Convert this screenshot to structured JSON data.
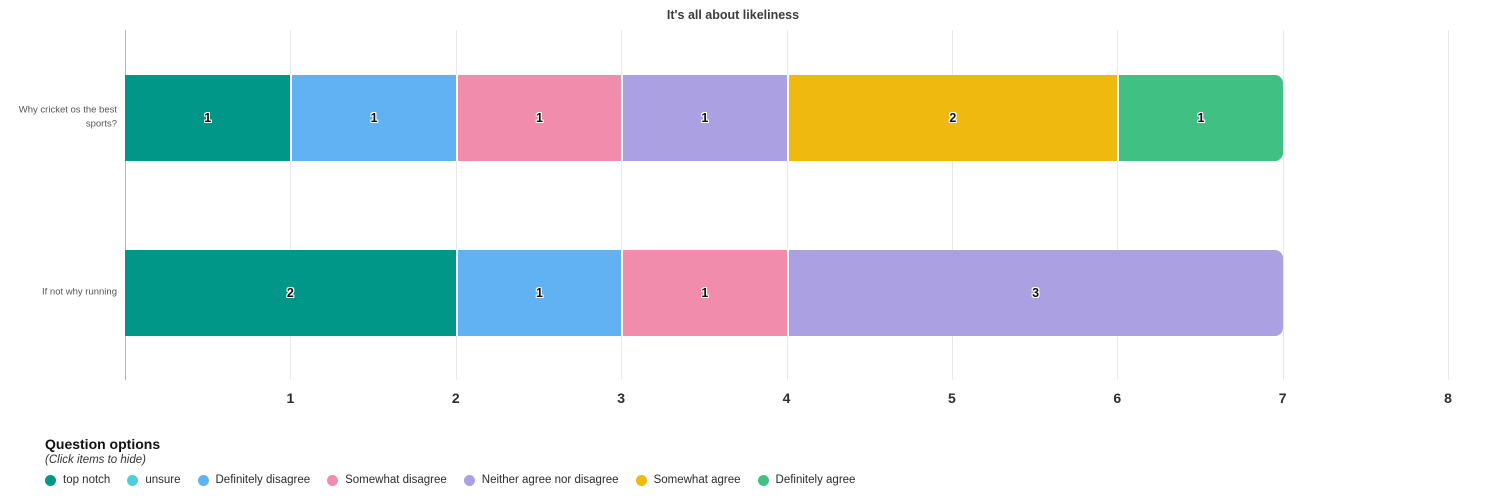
{
  "chart_data": {
    "type": "bar",
    "orientation": "horizontal",
    "stacked": true,
    "title": "It's all about likeliness",
    "categories": [
      "Why cricket os the best sports?",
      "If not why running"
    ],
    "series": [
      {
        "name": "top notch",
        "color": "#009789",
        "values": [
          1,
          2
        ]
      },
      {
        "name": "unsure",
        "color": "#4FCDD8",
        "values": [
          0,
          0
        ]
      },
      {
        "name": "Definitely disagree",
        "color": "#61B2F3",
        "values": [
          1,
          1
        ]
      },
      {
        "name": "Somewhat disagree",
        "color": "#F18CAC",
        "values": [
          1,
          1
        ]
      },
      {
        "name": "Neither agree nor disagree",
        "color": "#ABA0E2",
        "values": [
          1,
          3
        ]
      },
      {
        "name": "Somewhat agree",
        "color": "#F0B90F",
        "values": [
          2,
          0
        ]
      },
      {
        "name": "Definitely agree",
        "color": "#40C183",
        "values": [
          1,
          0
        ]
      }
    ],
    "xlim": [
      0,
      8
    ],
    "xticks": [
      "1",
      "2",
      "3",
      "4",
      "5",
      "6",
      "7",
      "8"
    ],
    "grid": true,
    "gridline_color": "#e9e9e9",
    "axis_line_color": "#b3b3b3",
    "legend_position": "bottom-left"
  },
  "legend": {
    "heading": "Question options",
    "subtitle": "(Click items to hide)"
  }
}
